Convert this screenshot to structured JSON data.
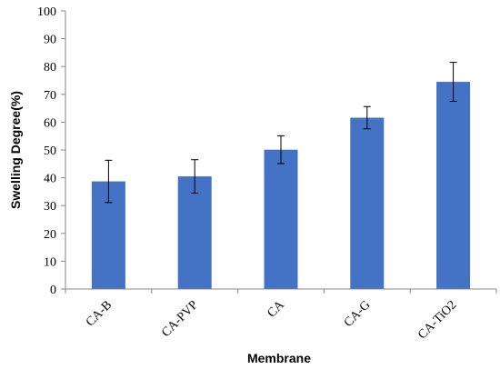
{
  "chart_data": {
    "type": "bar",
    "title": "",
    "xlabel": "Membrane",
    "ylabel": "Swelling Degree(%)",
    "ylim": [
      0,
      100
    ],
    "yticks": [
      0,
      10,
      20,
      30,
      40,
      50,
      60,
      70,
      80,
      90,
      100
    ],
    "grid": false,
    "legend": "none",
    "bar_color": "#4472C4",
    "categories": [
      "CA-B",
      "CA-PVP",
      "CA",
      "CA-G",
      "CA-TiO2"
    ],
    "values": [
      38.7,
      40.5,
      50.1,
      61.6,
      74.5
    ],
    "errors": [
      7.6,
      6.0,
      5.0,
      4.0,
      7.0
    ]
  }
}
